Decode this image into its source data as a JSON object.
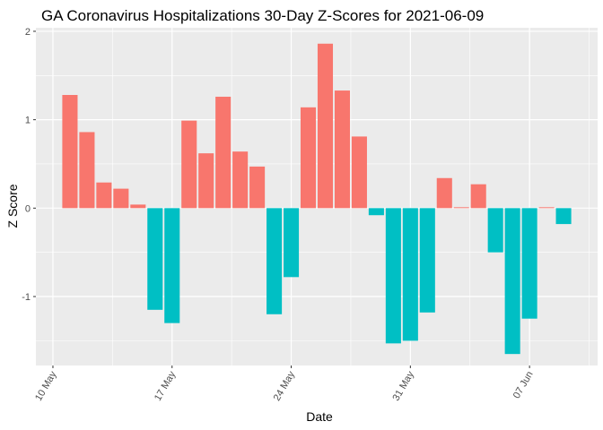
{
  "chart_data": {
    "type": "bar",
    "title": "GA Coronavirus Hospitalizations 30-Day Z-Scores for 2021-06-09",
    "xlabel": "Date",
    "ylabel": "Z Score",
    "x": [
      "2021-05-11",
      "2021-05-12",
      "2021-05-13",
      "2021-05-14",
      "2021-05-15",
      "2021-05-16",
      "2021-05-17",
      "2021-05-18",
      "2021-05-19",
      "2021-05-20",
      "2021-05-21",
      "2021-05-22",
      "2021-05-23",
      "2021-05-24",
      "2021-05-25",
      "2021-05-26",
      "2021-05-27",
      "2021-05-28",
      "2021-05-29",
      "2021-05-30",
      "2021-05-31",
      "2021-06-01",
      "2021-06-02",
      "2021-06-03",
      "2021-06-04",
      "2021-06-05",
      "2021-06-06",
      "2021-06-07",
      "2021-06-08",
      "2021-06-09"
    ],
    "values": [
      1.28,
      0.86,
      0.29,
      0.22,
      0.04,
      -1.15,
      -1.3,
      0.99,
      0.62,
      1.26,
      0.64,
      0.47,
      -1.2,
      -0.78,
      1.14,
      1.86,
      1.33,
      0.81,
      -0.08,
      -1.53,
      -1.5,
      -1.18,
      0.34,
      0.01,
      0.27,
      -0.5,
      -1.65,
      -1.25,
      0.01,
      -0.18
    ],
    "ylim": [
      -1.78,
      2.04
    ],
    "yticks": [
      -1,
      0,
      1,
      2
    ],
    "xticks": [
      {
        "date": "2021-05-10",
        "label": "10 May"
      },
      {
        "date": "2021-05-17",
        "label": "17 May"
      },
      {
        "date": "2021-05-24",
        "label": "24 May"
      },
      {
        "date": "2021-05-31",
        "label": "31 May"
      },
      {
        "date": "2021-06-07",
        "label": "07 Jun"
      }
    ],
    "xlim": [
      "2021-05-09",
      "2021-06-11"
    ],
    "grid": true,
    "legend": "none",
    "colors": {
      "positive": "#F8766D",
      "negative": "#00BFC4",
      "panel": "#EBEBEB",
      "grid": "#FFFFFF",
      "tick": "#4D4D4D",
      "axis_tick_line": "#333333"
    }
  }
}
